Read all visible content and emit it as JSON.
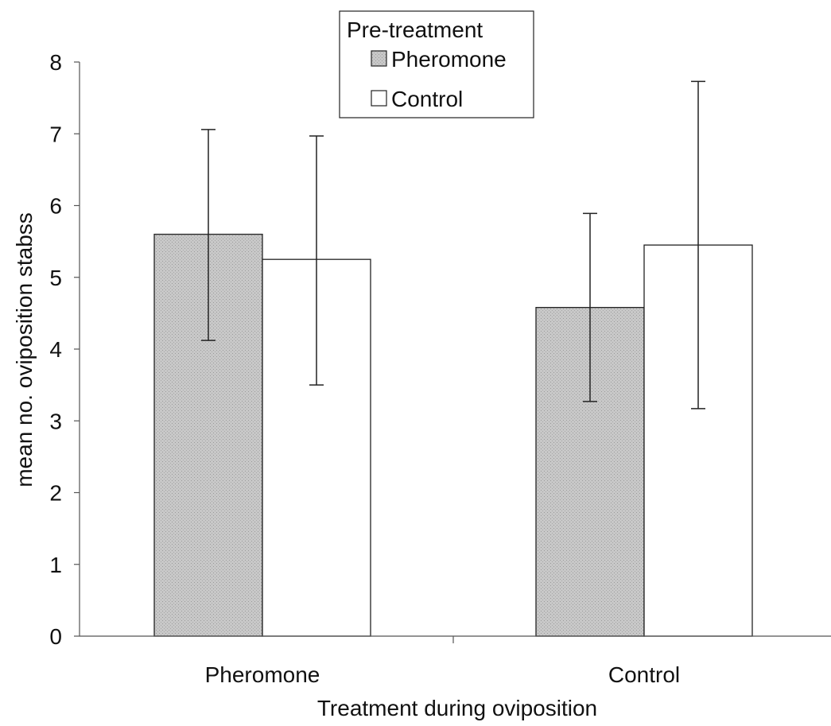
{
  "chart_data": {
    "type": "bar",
    "title": "",
    "xlabel": "Treatment during oviposition",
    "ylabel": "mean no. oviposition stabss",
    "categories": [
      "Pheromone",
      "Control"
    ],
    "ylim": [
      0,
      8
    ],
    "yticks": [
      "0",
      "1",
      "2",
      "3",
      "4",
      "5",
      "6",
      "7",
      "8"
    ],
    "grid": false,
    "legend": {
      "title": "Pre-treatment",
      "placement": "top-center"
    },
    "series": [
      {
        "name": "Pheromone",
        "values": [
          5.6,
          4.58
        ],
        "error_low": [
          4.12,
          3.27
        ],
        "error_high": [
          7.06,
          5.89
        ],
        "fill": "#c8c8c8"
      },
      {
        "name": "Control",
        "values": [
          5.25,
          5.45
        ],
        "error_low": [
          3.5,
          3.17
        ],
        "error_high": [
          6.97,
          7.73
        ],
        "fill": "#ffffff"
      }
    ]
  }
}
